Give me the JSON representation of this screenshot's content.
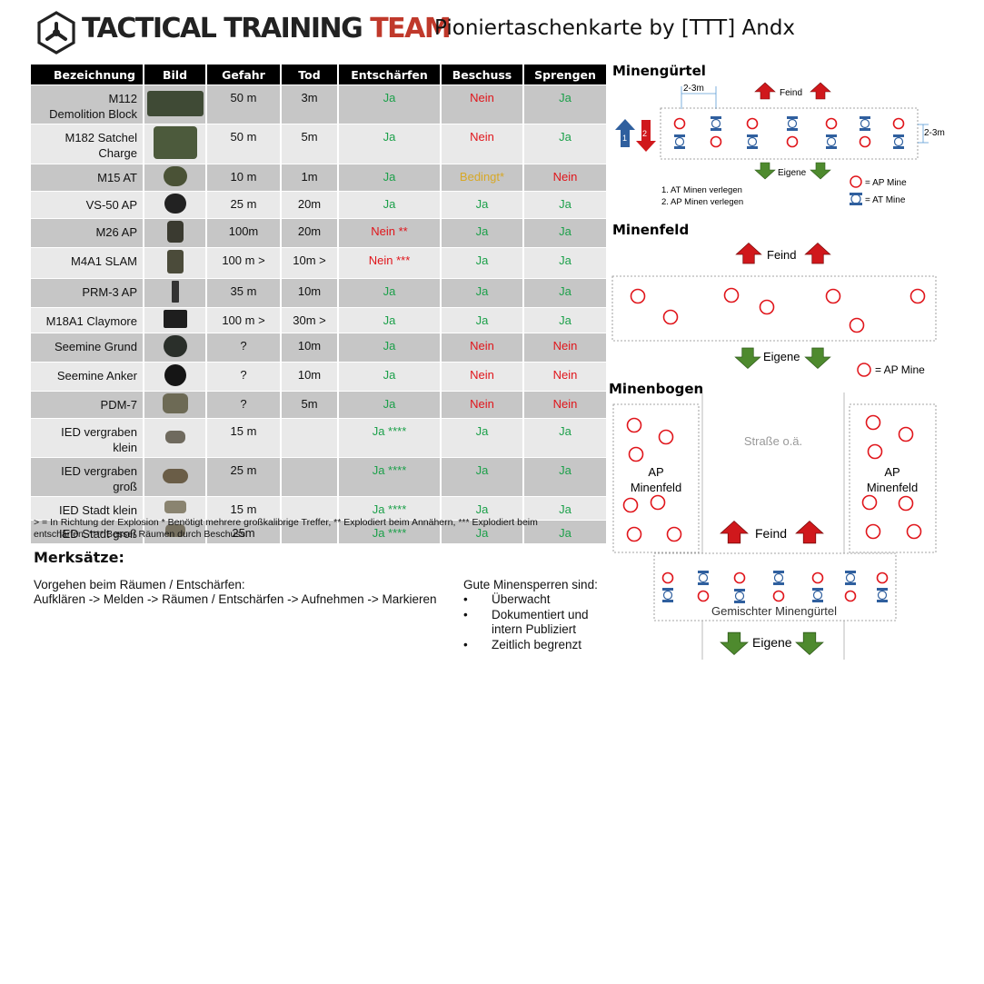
{
  "header": {
    "brand_part1": "TACTICAL TRAINING",
    "brand_part2": "TEAM",
    "subtitle": "Pioniertaschenkarte by [TTT] Andx"
  },
  "table": {
    "headers": [
      "Bezeichnung",
      "Bild",
      "Gefahr",
      "Tod",
      "Entschärfen",
      "Beschuss",
      "Sprengen"
    ],
    "rows": [
      {
        "name": "M112\nDemolition Block",
        "gefahr": "50 m",
        "tod": "3m",
        "entschaerfen": "Ja",
        "beschuss": "Nein",
        "sprengen": "Ja",
        "e_status": "ja",
        "b_status": "nein",
        "s_status": "ja"
      },
      {
        "name": "M182 Satchel\nCharge",
        "gefahr": "50 m",
        "tod": "5m",
        "entschaerfen": "Ja",
        "beschuss": "Nein",
        "sprengen": "Ja",
        "e_status": "ja",
        "b_status": "nein",
        "s_status": "ja"
      },
      {
        "name": "M15 AT",
        "gefahr": "10 m",
        "tod": "1m",
        "entschaerfen": "Ja",
        "beschuss": "Bedingt*",
        "sprengen": "Nein",
        "e_status": "ja",
        "b_status": "bedingt",
        "s_status": "nein"
      },
      {
        "name": "VS-50 AP",
        "gefahr": "25 m",
        "tod": "20m",
        "entschaerfen": "Ja",
        "beschuss": "Ja",
        "sprengen": "Ja",
        "e_status": "ja",
        "b_status": "ja",
        "s_status": "ja"
      },
      {
        "name": "M26 AP",
        "gefahr": "100m",
        "tod": "20m",
        "entschaerfen": "Nein **",
        "beschuss": "Ja",
        "sprengen": "Ja",
        "e_status": "nein",
        "b_status": "ja",
        "s_status": "ja"
      },
      {
        "name": "M4A1 SLAM",
        "gefahr": "100 m >",
        "tod": "10m >",
        "entschaerfen": "Nein ***",
        "beschuss": "Ja",
        "sprengen": "Ja",
        "e_status": "nein",
        "b_status": "ja",
        "s_status": "ja"
      },
      {
        "name": "PRM-3 AP",
        "gefahr": "35 m",
        "tod": "10m",
        "entschaerfen": "Ja",
        "beschuss": "Ja",
        "sprengen": "Ja",
        "e_status": "ja",
        "b_status": "ja",
        "s_status": "ja"
      },
      {
        "name": "M18A1 Claymore",
        "gefahr": "100 m >",
        "tod": "30m >",
        "entschaerfen": "Ja",
        "beschuss": "Ja",
        "sprengen": "Ja",
        "e_status": "ja",
        "b_status": "ja",
        "s_status": "ja"
      },
      {
        "name": "Seemine Grund",
        "gefahr": "?",
        "tod": "10m",
        "entschaerfen": "Ja",
        "beschuss": "Nein",
        "sprengen": "Nein",
        "e_status": "ja",
        "b_status": "nein",
        "s_status": "nein"
      },
      {
        "name": "Seemine Anker",
        "gefahr": "?",
        "tod": "10m",
        "entschaerfen": "Ja",
        "beschuss": "Nein",
        "sprengen": "Nein",
        "e_status": "ja",
        "b_status": "nein",
        "s_status": "nein"
      },
      {
        "name": "PDM-7",
        "gefahr": "?",
        "tod": "5m",
        "entschaerfen": "Ja",
        "beschuss": "Nein",
        "sprengen": "Nein",
        "e_status": "ja",
        "b_status": "nein",
        "s_status": "nein"
      },
      {
        "name": "IED vergraben\nklein",
        "gefahr": "15 m",
        "tod": "",
        "entschaerfen": "Ja ****",
        "beschuss": "Ja",
        "sprengen": "Ja",
        "e_status": "ja",
        "b_status": "ja",
        "s_status": "ja"
      },
      {
        "name": "IED vergraben\ngroß",
        "gefahr": "25 m",
        "tod": "",
        "entschaerfen": "Ja ****",
        "beschuss": "Ja",
        "sprengen": "Ja",
        "e_status": "ja",
        "b_status": "ja",
        "s_status": "ja"
      },
      {
        "name": "IED Stadt klein",
        "gefahr": "15 m",
        "tod": "",
        "entschaerfen": "Ja ****",
        "beschuss": "Ja",
        "sprengen": "Ja",
        "e_status": "ja",
        "b_status": "ja",
        "s_status": "ja"
      },
      {
        "name": "IED Stadt groß",
        "gefahr": "25m",
        "tod": "",
        "entschaerfen": "Ja ****",
        "beschuss": "Ja",
        "sprengen": "Ja",
        "e_status": "ja",
        "b_status": "ja",
        "s_status": "ja"
      }
    ]
  },
  "footnote": "> = In Richtung der Explosion * Benötigt mehrere großkalibrige Treffer, ** Explodiert beim Annähern, *** Explodiert beim entschärfen, **** Besser Räumen durch Beschuss",
  "merksaetze": {
    "title": "Merksätze:",
    "procedure_title": "Vorgehen beim Räumen / Entschärfen:",
    "procedure_text": "Aufklären -> Melden -> Räumen / Entschärfen -> Aufnehmen -> Markieren",
    "good_title": "Gute Minensperren sind:",
    "good_items": [
      "Überwacht",
      "Dokumentiert und intern Publiziert",
      "Zeitlich begrenzt"
    ]
  },
  "minenguertel": {
    "title": "Minengürtel",
    "spacing": "2-3m",
    "feind": "Feind",
    "eigene": "Eigene",
    "step1_num": "1",
    "step2_num": "2",
    "steps": [
      "1.  AT Minen verlegen",
      "2.  AP Minen verlegen"
    ],
    "legend_ap": "= AP Mine",
    "legend_at": "= AT Mine"
  },
  "minenfeld": {
    "title": "Minenfeld",
    "feind": "Feind",
    "eigene": "Eigene",
    "legend_ap": "= AP Mine"
  },
  "minenbogen": {
    "title": "Minenbogen",
    "road": "Straße o.ä.",
    "left_field": [
      "AP",
      "Minenfeld"
    ],
    "right_field": [
      "AP",
      "Minenfeld"
    ],
    "feind": "Feind",
    "mixed": "Gemischter Minengürtel",
    "eigene": "Eigene"
  },
  "colors": {
    "ja": "#1ca04a",
    "nein": "#e0151b",
    "bedingt": "#d7a826",
    "brand_red": "#c0392b",
    "arrow_red": "#d0181c",
    "arrow_green": "#4e8a2e",
    "at_blue": "#2f5f9e"
  }
}
